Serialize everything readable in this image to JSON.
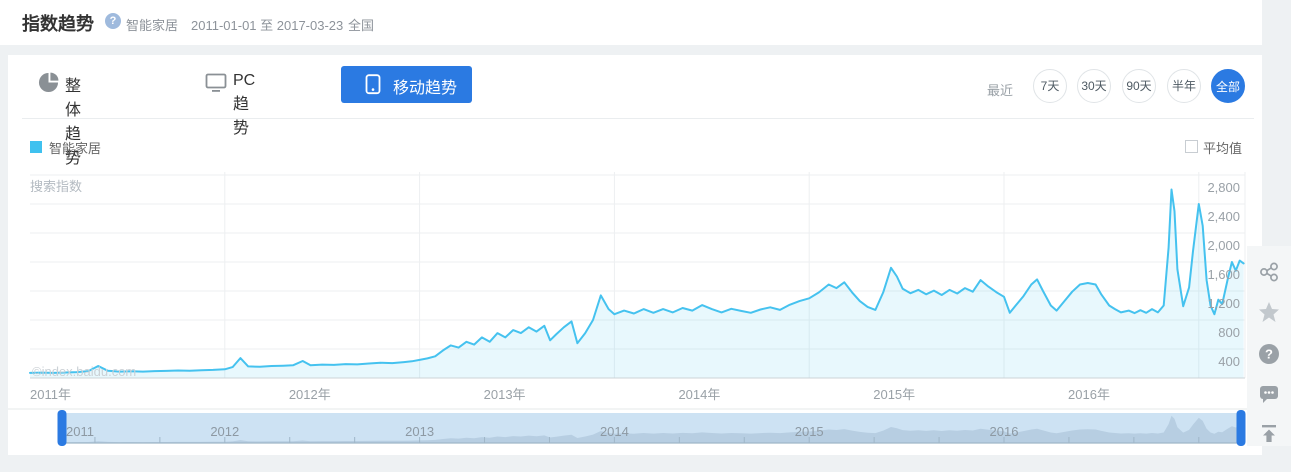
{
  "header": {
    "title": "指数趋势",
    "help_glyph": "?",
    "keyword": "智能家居",
    "date_range": "2011-01-01 至 2017-03-23",
    "region": "全国"
  },
  "tabs": [
    {
      "label": "整体趋势",
      "icon": "pie-chart-icon",
      "active": false
    },
    {
      "label": "PC趋势",
      "icon": "monitor-icon",
      "active": false
    },
    {
      "label": "移动趋势",
      "icon": "mobile-icon",
      "active": true
    }
  ],
  "time_range": {
    "label": "最近",
    "options": [
      {
        "label": "7天",
        "active": false
      },
      {
        "label": "30天",
        "active": false
      },
      {
        "label": "90天",
        "active": false
      },
      {
        "label": "半年",
        "active": false
      },
      {
        "label": "全部",
        "active": true
      }
    ]
  },
  "legend": {
    "series_label": "智能家居",
    "series_color": "#45c2ef",
    "average_label": "平均值",
    "average_checked": false
  },
  "chart_data": {
    "type": "area",
    "ylabel": "搜索指数",
    "watermark": "©index.baidu.com",
    "x_range": [
      2011.0,
      2017.25
    ],
    "y_range": [
      0,
      2800
    ],
    "grid": true,
    "legend_position": "top-left",
    "yticks": [
      {
        "value": 400,
        "label": "400"
      },
      {
        "value": 800,
        "label": "800"
      },
      {
        "value": 1200,
        "label": "1,200"
      },
      {
        "value": 1600,
        "label": "1,600"
      },
      {
        "value": 2000,
        "label": "2,000"
      },
      {
        "value": 2400,
        "label": "2,400"
      },
      {
        "value": 2800,
        "label": "2,800"
      }
    ],
    "xticks": [
      {
        "value": 2011,
        "label": "2011年"
      },
      {
        "value": 2012,
        "label": "2012年"
      },
      {
        "value": 2013,
        "label": "2013年"
      },
      {
        "value": 2014,
        "label": "2014年"
      },
      {
        "value": 2015,
        "label": "2015年"
      },
      {
        "value": 2016,
        "label": "2016年"
      }
    ],
    "series": [
      {
        "name": "智能家居",
        "color": "#45c2ef",
        "points": [
          [
            2011.0,
            70
          ],
          [
            2011.06,
            74
          ],
          [
            2011.12,
            70
          ],
          [
            2011.18,
            76
          ],
          [
            2011.24,
            82
          ],
          [
            2011.3,
            95
          ],
          [
            2011.35,
            165
          ],
          [
            2011.4,
            100
          ],
          [
            2011.46,
            88
          ],
          [
            2011.52,
            92
          ],
          [
            2011.58,
            88
          ],
          [
            2011.64,
            95
          ],
          [
            2011.7,
            98
          ],
          [
            2011.76,
            104
          ],
          [
            2011.82,
            100
          ],
          [
            2011.88,
            108
          ],
          [
            2011.94,
            112
          ],
          [
            2012.0,
            120
          ],
          [
            2012.04,
            150
          ],
          [
            2012.08,
            275
          ],
          [
            2012.12,
            160
          ],
          [
            2012.18,
            155
          ],
          [
            2012.24,
            165
          ],
          [
            2012.3,
            170
          ],
          [
            2012.35,
            175
          ],
          [
            2012.4,
            235
          ],
          [
            2012.44,
            175
          ],
          [
            2012.5,
            185
          ],
          [
            2012.56,
            180
          ],
          [
            2012.62,
            192
          ],
          [
            2012.68,
            188
          ],
          [
            2012.74,
            200
          ],
          [
            2012.8,
            210
          ],
          [
            2012.86,
            205
          ],
          [
            2012.92,
            220
          ],
          [
            2012.96,
            230
          ],
          [
            2013.0,
            250
          ],
          [
            2013.04,
            270
          ],
          [
            2013.08,
            300
          ],
          [
            2013.12,
            380
          ],
          [
            2013.16,
            450
          ],
          [
            2013.2,
            420
          ],
          [
            2013.24,
            500
          ],
          [
            2013.28,
            460
          ],
          [
            2013.32,
            560
          ],
          [
            2013.36,
            500
          ],
          [
            2013.4,
            620
          ],
          [
            2013.44,
            560
          ],
          [
            2013.48,
            660
          ],
          [
            2013.52,
            620
          ],
          [
            2013.56,
            700
          ],
          [
            2013.6,
            640
          ],
          [
            2013.64,
            720
          ],
          [
            2013.67,
            520
          ],
          [
            2013.7,
            600
          ],
          [
            2013.74,
            700
          ],
          [
            2013.78,
            780
          ],
          [
            2013.81,
            480
          ],
          [
            2013.85,
            620
          ],
          [
            2013.89,
            800
          ],
          [
            2013.93,
            1140
          ],
          [
            2013.97,
            950
          ],
          [
            2014.0,
            880
          ],
          [
            2014.05,
            930
          ],
          [
            2014.1,
            890
          ],
          [
            2014.15,
            950
          ],
          [
            2014.2,
            900
          ],
          [
            2014.25,
            950
          ],
          [
            2014.3,
            905
          ],
          [
            2014.35,
            965
          ],
          [
            2014.4,
            930
          ],
          [
            2014.45,
            1005
          ],
          [
            2014.5,
            950
          ],
          [
            2014.55,
            905
          ],
          [
            2014.6,
            955
          ],
          [
            2014.65,
            925
          ],
          [
            2014.7,
            900
          ],
          [
            2014.75,
            945
          ],
          [
            2014.8,
            975
          ],
          [
            2014.85,
            940
          ],
          [
            2014.9,
            1010
          ],
          [
            2014.95,
            1060
          ],
          [
            2015.0,
            1100
          ],
          [
            2015.05,
            1180
          ],
          [
            2015.1,
            1290
          ],
          [
            2015.14,
            1240
          ],
          [
            2015.18,
            1320
          ],
          [
            2015.22,
            1180
          ],
          [
            2015.26,
            1060
          ],
          [
            2015.3,
            980
          ],
          [
            2015.34,
            940
          ],
          [
            2015.38,
            1180
          ],
          [
            2015.42,
            1520
          ],
          [
            2015.45,
            1400
          ],
          [
            2015.48,
            1230
          ],
          [
            2015.52,
            1170
          ],
          [
            2015.56,
            1215
          ],
          [
            2015.6,
            1155
          ],
          [
            2015.64,
            1205
          ],
          [
            2015.68,
            1145
          ],
          [
            2015.72,
            1215
          ],
          [
            2015.76,
            1165
          ],
          [
            2015.8,
            1240
          ],
          [
            2015.84,
            1190
          ],
          [
            2015.88,
            1350
          ],
          [
            2015.92,
            1260
          ],
          [
            2015.96,
            1185
          ],
          [
            2016.0,
            1120
          ],
          [
            2016.03,
            900
          ],
          [
            2016.06,
            1000
          ],
          [
            2016.1,
            1130
          ],
          [
            2016.14,
            1290
          ],
          [
            2016.17,
            1360
          ],
          [
            2016.2,
            1200
          ],
          [
            2016.24,
            1000
          ],
          [
            2016.27,
            930
          ],
          [
            2016.31,
            1060
          ],
          [
            2016.35,
            1190
          ],
          [
            2016.39,
            1290
          ],
          [
            2016.43,
            1310
          ],
          [
            2016.47,
            1290
          ],
          [
            2016.5,
            1150
          ],
          [
            2016.54,
            1000
          ],
          [
            2016.57,
            950
          ],
          [
            2016.6,
            905
          ],
          [
            2016.64,
            930
          ],
          [
            2016.67,
            895
          ],
          [
            2016.7,
            935
          ],
          [
            2016.73,
            900
          ],
          [
            2016.76,
            950
          ],
          [
            2016.79,
            905
          ],
          [
            2016.82,
            1000
          ],
          [
            2016.845,
            1800
          ],
          [
            2016.86,
            2600
          ],
          [
            2016.875,
            2300
          ],
          [
            2016.89,
            1500
          ],
          [
            2016.92,
            990
          ],
          [
            2016.95,
            1250
          ],
          [
            2016.97,
            1750
          ],
          [
            2017.0,
            2400
          ],
          [
            2017.02,
            2100
          ],
          [
            2017.04,
            1350
          ],
          [
            2017.06,
            1000
          ],
          [
            2017.08,
            880
          ],
          [
            2017.1,
            1080
          ],
          [
            2017.12,
            1020
          ],
          [
            2017.15,
            1380
          ],
          [
            2017.17,
            1600
          ],
          [
            2017.19,
            1480
          ],
          [
            2017.21,
            1620
          ],
          [
            2017.23,
            1580
          ]
        ]
      }
    ]
  },
  "navigator": {
    "years": [
      "2011",
      "2012",
      "2013",
      "2014",
      "2015",
      "2016"
    ]
  },
  "side_toolbar": {
    "help_glyph": "?",
    "icons": [
      "share-icon",
      "star-icon",
      "help-icon",
      "feedback-icon",
      "back-to-top-icon"
    ]
  },
  "colors": {
    "accent_blue": "#2b7ae2",
    "series_blue": "#45c2ef",
    "area_fill": "rgba(69,194,239,0.12)",
    "grid_line": "#edeff1",
    "axis_line": "#ccd3d7",
    "axis_text": "#9aa1a7",
    "navigator_band": "#cde2f3",
    "navigator_silhouette": "#b7cee2",
    "navigator_baseline": "#9fb6c8",
    "navigator_text": "#8d99a3"
  }
}
